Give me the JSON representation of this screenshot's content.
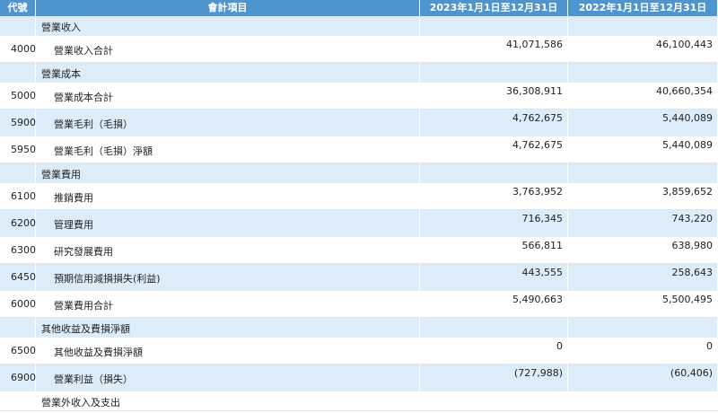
{
  "table": {
    "header": [
      "代號",
      "會計項目",
      "2023年1月1日至12月31日",
      "2022年1月1日至12月31日"
    ],
    "rows": [
      {
        "label": "營業收入"
      },
      {
        "code": "4000",
        "label": "營業收入合計",
        "values": [
          "41,071,586",
          "46,100,443"
        ]
      },
      {
        "label": "營業成本"
      },
      {
        "code": "5000",
        "label": "營業成本合計",
        "values": [
          "36,308,911",
          "40,660,354"
        ]
      },
      {
        "code": "5900",
        "label": "營業毛利（毛損）",
        "values": [
          "4,762,675",
          "5,440,089"
        ]
      },
      {
        "code": "5950",
        "label": "營業毛利（毛損）淨額",
        "values": [
          "4,762,675",
          "5,440,089"
        ]
      },
      {
        "label": "營業費用"
      },
      {
        "code": "6100",
        "label": "推銷費用",
        "values": [
          "3,763,952",
          "3,859,652"
        ]
      },
      {
        "code": "6200",
        "label": "管理費用",
        "values": [
          "716,345",
          "743,220"
        ]
      },
      {
        "code": "6300",
        "label": "研究發展費用",
        "values": [
          "566,811",
          "638,980"
        ]
      },
      {
        "code": "6450",
        "label": "預期信用減損損失(利益)",
        "values": [
          "443,555",
          "258,643"
        ]
      },
      {
        "code": "6000",
        "label": "營業費用合計",
        "values": [
          "5,490,663",
          "5,500,495"
        ]
      },
      {
        "label": "其他收益及費損淨額"
      },
      {
        "code": "6500",
        "label": "其他收益及費損淨額",
        "values": [
          "0",
          "0"
        ]
      },
      {
        "code": "6900",
        "label": "營業利益（損失）",
        "values": [
          "(727,988)",
          "(60,406)"
        ]
      },
      {
        "label": "營業外收入及支出"
      }
    ]
  }
}
